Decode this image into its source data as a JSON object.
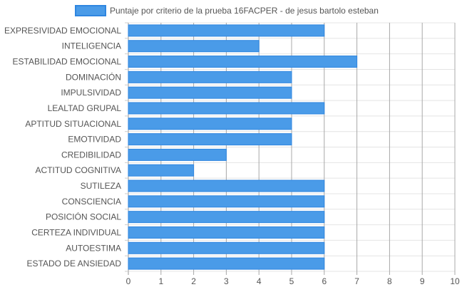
{
  "chart_data": {
    "type": "bar",
    "orientation": "horizontal",
    "legend_position": "top",
    "grid": true,
    "xlim": [
      0,
      10
    ],
    "x_ticks": [
      "0",
      "1",
      "2",
      "3",
      "4",
      "5",
      "6",
      "7",
      "8",
      "9",
      "10"
    ],
    "categories": [
      "EXPRESIVIDAD EMOCIONAL",
      "INTELIGENCIA",
      "ESTABILIDAD EMOCIONAL",
      "DOMINACIÓN",
      "IMPULSIVIDAD",
      "LEALTAD GRUPAL",
      "APTITUD SITUACIONAL",
      "EMOTIVIDAD",
      "CREDIBILIDAD",
      "ACTITUD COGNITIVA",
      "SUTILEZA",
      "CONSCIENCIA",
      "POSICIÓN SOCIAL",
      "CERTEZA INDIVIDUAL",
      "AUTOESTIMA",
      "ESTADO DE ANSIEDAD"
    ],
    "series": [
      {
        "name": "Puntaje por criterio de la prueba 16FACPER - de jesus bartolo esteban",
        "color": "#4a9be8",
        "border_color": "#2f86e0",
        "values": [
          6,
          4,
          7,
          5,
          5,
          6,
          5,
          5,
          3,
          2,
          6,
          6,
          6,
          6,
          6,
          6
        ]
      }
    ]
  }
}
